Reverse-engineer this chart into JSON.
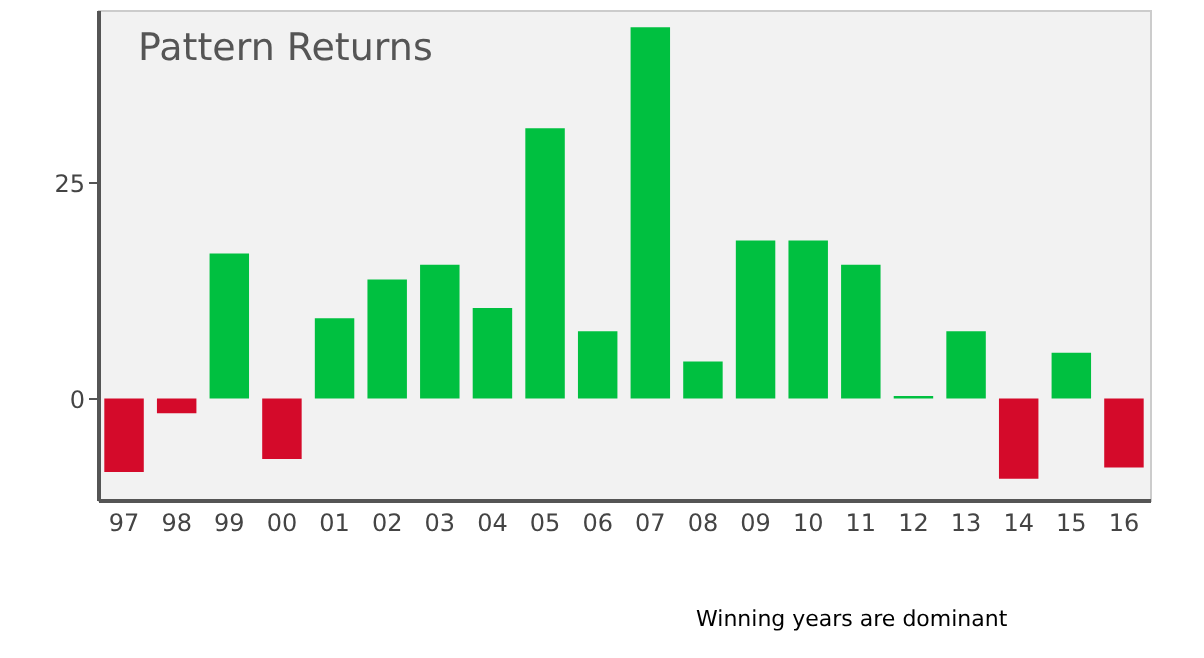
{
  "chart_data": {
    "type": "bar",
    "title": "Pattern Returns",
    "categories": [
      "97",
      "98",
      "99",
      "00",
      "01",
      "02",
      "03",
      "04",
      "05",
      "06",
      "07",
      "08",
      "09",
      "10",
      "11",
      "12",
      "13",
      "14",
      "15",
      "16"
    ],
    "values": [
      -8.5,
      -1.7,
      16.8,
      -7,
      9.3,
      13.8,
      15.5,
      10.5,
      31.3,
      7.8,
      43,
      4.3,
      18.3,
      18.3,
      15.5,
      0.3,
      7.8,
      -9.3,
      5.3,
      -8
    ],
    "colors": [
      "#d40a2a",
      "#d40a2a",
      "#00c040",
      "#d40a2a",
      "#00c040",
      "#00c040",
      "#00c040",
      "#00c040",
      "#00c040",
      "#00c040",
      "#00c040",
      "#00c040",
      "#00c040",
      "#00c040",
      "#00c040",
      "#00c040",
      "#00c040",
      "#d40a2a",
      "#00c040",
      "#d40a2a"
    ],
    "ylim": [
      -11.75,
      45
    ],
    "yticks": [
      0,
      25
    ],
    "grid": false,
    "annotations": [
      "Winning years are dominant"
    ]
  }
}
